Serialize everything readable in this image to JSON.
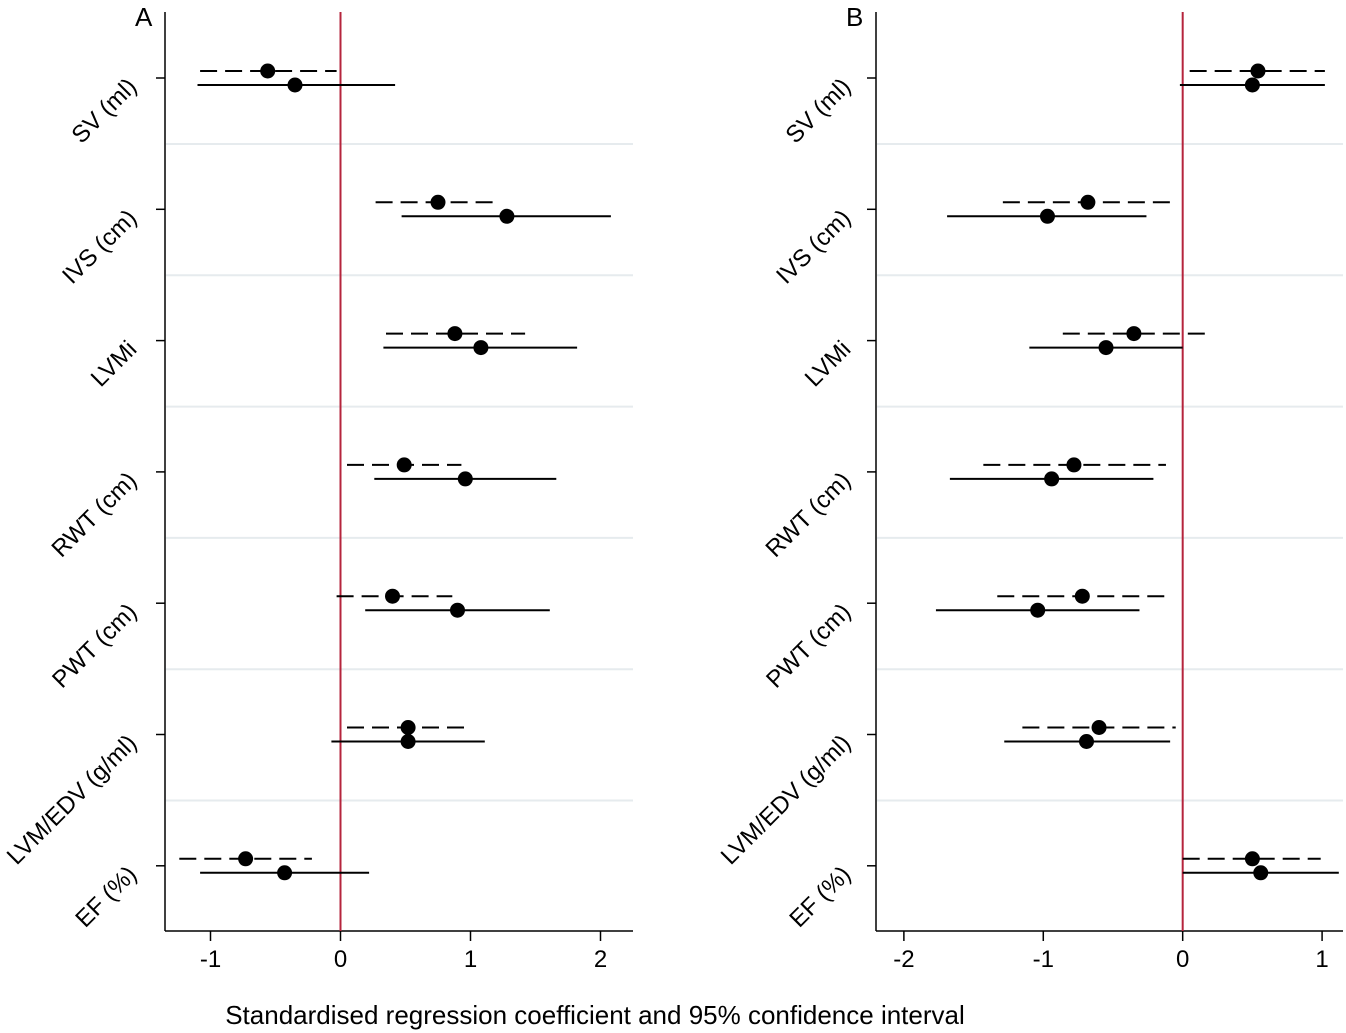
{
  "chart_data": {
    "type": "forest",
    "xlabel": "Standardised regression coefficient and 95% confidence interval",
    "colors": {
      "reference_line": "#b5243c",
      "marks": "#000000",
      "grid": "#e6ebee"
    },
    "line_styles": {
      "dashed": "dashed estimate",
      "solid": "solid estimate"
    },
    "panels": [
      {
        "panel_label": "A",
        "xlim": [
          -1.35,
          2.25
        ],
        "xticks": [
          -1,
          0,
          1,
          2
        ],
        "reference_x": 0,
        "rows": [
          {
            "label": "SV (ml)",
            "dashed": {
              "est": -0.56,
              "lo": -1.08,
              "hi": -0.03
            },
            "solid": {
              "est": -0.35,
              "lo": -1.1,
              "hi": 0.42
            }
          },
          {
            "label": "IVS (cm)",
            "dashed": {
              "est": 0.75,
              "lo": 0.27,
              "hi": 1.19
            },
            "solid": {
              "est": 1.28,
              "lo": 0.47,
              "hi": 2.08
            }
          },
          {
            "label": "LVMi",
            "dashed": {
              "est": 0.88,
              "lo": 0.35,
              "hi": 1.42
            },
            "solid": {
              "est": 1.08,
              "lo": 0.33,
              "hi": 1.82
            }
          },
          {
            "label": "RWT (cm)",
            "dashed": {
              "est": 0.49,
              "lo": 0.05,
              "hi": 0.93
            },
            "solid": {
              "est": 0.96,
              "lo": 0.26,
              "hi": 1.66
            }
          },
          {
            "label": "PWT (cm)",
            "dashed": {
              "est": 0.4,
              "lo": -0.03,
              "hi": 0.86
            },
            "solid": {
              "est": 0.9,
              "lo": 0.19,
              "hi": 1.61
            }
          },
          {
            "label": "LVM/EDV (g/ml)",
            "dashed": {
              "est": 0.52,
              "lo": 0.05,
              "hi": 0.97
            },
            "solid": {
              "est": 0.52,
              "lo": -0.07,
              "hi": 1.11
            }
          },
          {
            "label": "EF (%)",
            "dashed": {
              "est": -0.73,
              "lo": -1.24,
              "hi": -0.22
            },
            "solid": {
              "est": -0.43,
              "lo": -1.08,
              "hi": 0.22
            }
          }
        ]
      },
      {
        "panel_label": "B",
        "xlim": [
          -2.2,
          1.15
        ],
        "xticks": [
          -2,
          -1,
          0,
          1
        ],
        "reference_x": 0,
        "rows": [
          {
            "label": "SV (ml)",
            "dashed": {
              "est": 0.54,
              "lo": 0.05,
              "hi": 1.02
            },
            "solid": {
              "est": 0.5,
              "lo": -0.02,
              "hi": 1.02
            }
          },
          {
            "label": "IVS (cm)",
            "dashed": {
              "est": -0.68,
              "lo": -1.29,
              "hi": -0.05
            },
            "solid": {
              "est": -0.97,
              "lo": -1.69,
              "hi": -0.26
            }
          },
          {
            "label": "LVMi",
            "dashed": {
              "est": -0.35,
              "lo": -0.86,
              "hi": 0.16
            },
            "solid": {
              "est": -0.55,
              "lo": -1.1,
              "hi": 0.0
            }
          },
          {
            "label": "RWT (cm)",
            "dashed": {
              "est": -0.78,
              "lo": -1.43,
              "hi": -0.12
            },
            "solid": {
              "est": -0.94,
              "lo": -1.67,
              "hi": -0.21
            }
          },
          {
            "label": "PWT (cm)",
            "dashed": {
              "est": -0.72,
              "lo": -1.33,
              "hi": -0.08
            },
            "solid": {
              "est": -1.04,
              "lo": -1.77,
              "hi": -0.31
            }
          },
          {
            "label": "LVM/EDV (g/ml)",
            "dashed": {
              "est": -0.6,
              "lo": -1.15,
              "hi": -0.05
            },
            "solid": {
              "est": -0.69,
              "lo": -1.28,
              "hi": -0.09
            }
          },
          {
            "label": "EF (%)",
            "dashed": {
              "est": 0.5,
              "lo": 0.0,
              "hi": 0.99
            },
            "solid": {
              "est": 0.56,
              "lo": 0.0,
              "hi": 1.12
            }
          }
        ]
      }
    ]
  }
}
